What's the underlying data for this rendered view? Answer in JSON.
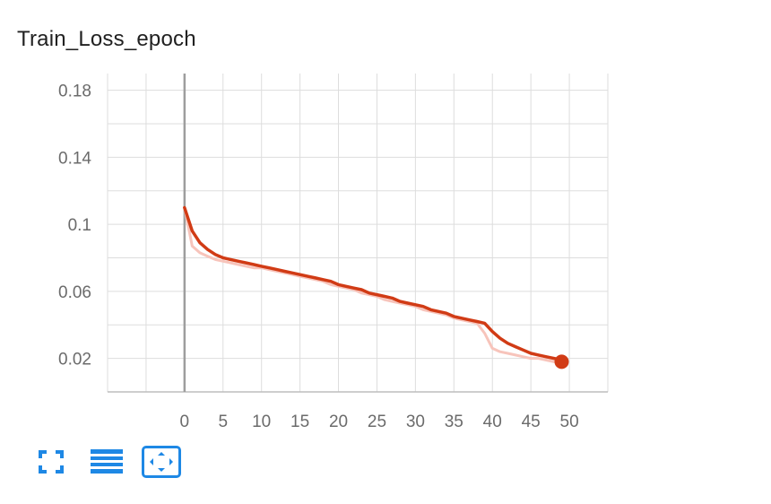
{
  "chart_data": {
    "type": "line",
    "title": "Train_Loss_epoch",
    "xlabel": "",
    "ylabel": "",
    "xlim": [
      -10,
      55
    ],
    "ylim": [
      0,
      0.19
    ],
    "x_ticks": [
      0,
      5,
      10,
      15,
      20,
      25,
      30,
      35,
      40,
      45,
      50
    ],
    "y_ticks": [
      0.02,
      0.06,
      0.1,
      0.14,
      0.18
    ],
    "y_tick_labels": [
      "0.02",
      "0.06",
      "0.1",
      "0.14",
      "0.18"
    ],
    "grid": true,
    "colors": {
      "smoothed": "#d13b15",
      "raw": "#f7c4bb",
      "grid": "#dddddd",
      "axis": "#9e9e9e"
    },
    "series": [
      {
        "role": "smoothed",
        "x": [
          0,
          1,
          2,
          3,
          4,
          5,
          6,
          7,
          8,
          9,
          10,
          11,
          12,
          13,
          14,
          15,
          16,
          17,
          18,
          19,
          20,
          21,
          22,
          23,
          24,
          25,
          26,
          27,
          28,
          29,
          30,
          31,
          32,
          33,
          34,
          35,
          36,
          37,
          38,
          39,
          40,
          41,
          42,
          43,
          44,
          45,
          46,
          47,
          48,
          49
        ],
        "y": [
          0.11,
          0.096,
          0.089,
          0.085,
          0.082,
          0.08,
          0.079,
          0.078,
          0.077,
          0.076,
          0.075,
          0.074,
          0.073,
          0.072,
          0.071,
          0.07,
          0.069,
          0.068,
          0.067,
          0.066,
          0.064,
          0.063,
          0.062,
          0.061,
          0.059,
          0.058,
          0.057,
          0.056,
          0.054,
          0.053,
          0.052,
          0.051,
          0.049,
          0.048,
          0.047,
          0.045,
          0.044,
          0.043,
          0.042,
          0.041,
          0.036,
          0.032,
          0.029,
          0.027,
          0.025,
          0.023,
          0.022,
          0.021,
          0.02,
          0.019
        ]
      },
      {
        "role": "raw",
        "x": [
          0,
          1,
          2,
          3,
          4,
          5,
          6,
          7,
          8,
          9,
          10,
          11,
          12,
          13,
          14,
          15,
          16,
          17,
          18,
          19,
          20,
          21,
          22,
          23,
          24,
          25,
          26,
          27,
          28,
          29,
          30,
          31,
          32,
          33,
          34,
          35,
          36,
          37,
          38,
          39,
          40,
          41,
          42,
          43,
          44,
          45,
          46,
          47,
          48,
          49
        ],
        "y": [
          0.11,
          0.087,
          0.083,
          0.081,
          0.079,
          0.078,
          0.077,
          0.076,
          0.075,
          0.074,
          0.074,
          0.073,
          0.072,
          0.071,
          0.07,
          0.069,
          0.068,
          0.067,
          0.066,
          0.064,
          0.063,
          0.062,
          0.061,
          0.059,
          0.058,
          0.057,
          0.055,
          0.054,
          0.053,
          0.052,
          0.051,
          0.049,
          0.048,
          0.047,
          0.046,
          0.044,
          0.043,
          0.042,
          0.041,
          0.035,
          0.026,
          0.024,
          0.023,
          0.022,
          0.021,
          0.02,
          0.02,
          0.019,
          0.018,
          0.018
        ]
      }
    ],
    "last_point": {
      "x": 49,
      "y": 0.018
    }
  },
  "toolbar": {
    "buttons": [
      {
        "icon": "fullscreen-icon",
        "active": false,
        "color": "#1e88e5"
      },
      {
        "icon": "data-table-icon",
        "active": false,
        "color": "#1e88e5"
      },
      {
        "icon": "fit-domain-icon",
        "active": true,
        "color": "#1e88e5"
      }
    ]
  }
}
